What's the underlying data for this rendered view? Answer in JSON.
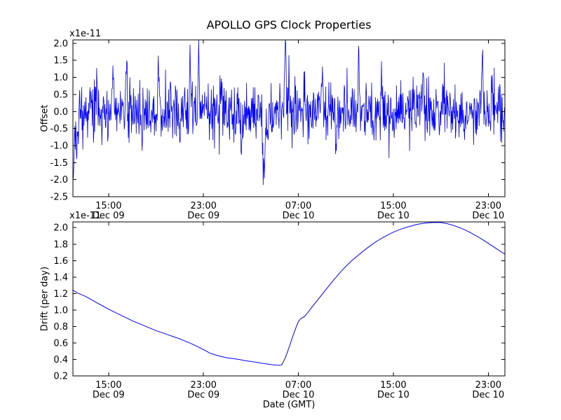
{
  "figure": {
    "background": "#ffffff",
    "line_color": "#0000ff",
    "axis_color": "#000000",
    "title": "APOLLO GPS Clock Properties",
    "xlabel": "Date (GMT)"
  },
  "chart_data": [
    {
      "type": "line",
      "name": "gps-clock-offset",
      "title": "APOLLO GPS Clock Properties",
      "ylabel": "Offset",
      "scale_label": "x1e-11",
      "y_unit": "1e-11",
      "xlim_hours": [
        12.0,
        48.4
      ],
      "ylim": [
        -2.5,
        2.1
      ],
      "yticks": [
        {
          "v": 2.0,
          "label": "2.0"
        },
        {
          "v": 1.5,
          "label": "1.5"
        },
        {
          "v": 1.0,
          "label": "1.0"
        },
        {
          "v": 0.5,
          "label": "0.5"
        },
        {
          "v": 0.0,
          "label": "0.0"
        },
        {
          "v": -0.5,
          "label": "-0.5"
        },
        {
          "v": -1.0,
          "label": "-1.0"
        },
        {
          "v": -1.5,
          "label": "-1.5"
        },
        {
          "v": -2.0,
          "label": "-2.0"
        },
        {
          "v": -2.5,
          "label": "-2.5"
        }
      ],
      "xticks": [
        {
          "hour": 15,
          "time": "15:00",
          "date": "Dec 09"
        },
        {
          "hour": 23,
          "time": "23:00",
          "date": "Dec 09"
        },
        {
          "hour": 31,
          "time": "07:00",
          "date": "Dec 10"
        },
        {
          "hour": 39,
          "time": "15:00",
          "date": "Dec 10"
        },
        {
          "hour": 47,
          "time": "23:00",
          "date": "Dec 10"
        }
      ],
      "noise": {
        "seed": 20,
        "dt_minutes": 2,
        "mean": 0.0,
        "std": 0.4,
        "clip": [
          -2.45,
          2.1
        ],
        "pulses": [
          [
            12.05,
            -1.9,
            0.12
          ],
          [
            12.35,
            -1.1,
            0.1
          ],
          [
            14.0,
            0.9,
            0.1
          ],
          [
            15.4,
            1.0,
            0.08
          ],
          [
            16.5,
            1.5,
            0.07
          ],
          [
            17.8,
            -0.9,
            0.08
          ],
          [
            19.2,
            1.0,
            0.08
          ],
          [
            21.0,
            -1.1,
            0.08
          ],
          [
            21.9,
            1.5,
            0.07
          ],
          [
            22.6,
            1.55,
            0.07
          ],
          [
            24.5,
            0.9,
            0.08
          ],
          [
            26.2,
            -1.0,
            0.1
          ],
          [
            28.1,
            -1.9,
            0.12
          ],
          [
            28.4,
            -1.1,
            0.08
          ],
          [
            29.9,
            2.2,
            0.09
          ],
          [
            30.2,
            1.0,
            0.06
          ],
          [
            31.5,
            1.1,
            0.08
          ],
          [
            33.0,
            0.9,
            0.08
          ],
          [
            34.2,
            -1.0,
            0.08
          ],
          [
            36.1,
            1.3,
            0.07
          ],
          [
            38.0,
            0.9,
            0.08
          ],
          [
            41.5,
            1.2,
            0.08
          ],
          [
            43.2,
            0.8,
            0.08
          ],
          [
            45.0,
            -0.9,
            0.08
          ],
          [
            46.5,
            1.5,
            0.08
          ],
          [
            47.3,
            0.9,
            0.06
          ]
        ]
      }
    },
    {
      "type": "line",
      "name": "gps-clock-drift",
      "ylabel": "Drift (per day)",
      "xlabel": "Date (GMT)",
      "scale_label": "x1e-11",
      "y_unit": "1e-11",
      "xlim_hours": [
        12.0,
        48.4
      ],
      "ylim": [
        0.2,
        2.07
      ],
      "yticks": [
        {
          "v": 2.0,
          "label": "2.0"
        },
        {
          "v": 1.8,
          "label": "1.8"
        },
        {
          "v": 1.6,
          "label": "1.6"
        },
        {
          "v": 1.4,
          "label": "1.4"
        },
        {
          "v": 1.2,
          "label": "1.2"
        },
        {
          "v": 1.0,
          "label": "1.0"
        },
        {
          "v": 0.8,
          "label": "0.8"
        },
        {
          "v": 0.6,
          "label": "0.6"
        },
        {
          "v": 0.4,
          "label": "0.4"
        },
        {
          "v": 0.2,
          "label": "0.2"
        }
      ],
      "xticks": [
        {
          "hour": 15,
          "time": "15:00",
          "date": "Dec 09"
        },
        {
          "hour": 23,
          "time": "23:00",
          "date": "Dec 09"
        },
        {
          "hour": 31,
          "time": "07:00",
          "date": "Dec 10"
        },
        {
          "hour": 39,
          "time": "15:00",
          "date": "Dec 10"
        },
        {
          "hour": 47,
          "time": "23:00",
          "date": "Dec 10"
        }
      ],
      "points": [
        [
          12.0,
          1.24
        ],
        [
          12.5,
          1.2
        ],
        [
          13.0,
          1.17
        ],
        [
          13.5,
          1.13
        ],
        [
          14.0,
          1.09
        ],
        [
          14.5,
          1.05
        ],
        [
          15.0,
          1.01
        ],
        [
          15.5,
          0.975
        ],
        [
          16.0,
          0.94
        ],
        [
          16.5,
          0.905
        ],
        [
          17.0,
          0.87
        ],
        [
          17.5,
          0.84
        ],
        [
          18.0,
          0.81
        ],
        [
          18.5,
          0.78
        ],
        [
          19.0,
          0.75
        ],
        [
          19.5,
          0.725
        ],
        [
          20.0,
          0.7
        ],
        [
          20.5,
          0.675
        ],
        [
          21.0,
          0.65
        ],
        [
          21.5,
          0.62
        ],
        [
          22.0,
          0.59
        ],
        [
          22.5,
          0.555
        ],
        [
          23.0,
          0.52
        ],
        [
          23.5,
          0.48
        ],
        [
          24.0,
          0.455
        ],
        [
          24.5,
          0.435
        ],
        [
          25.0,
          0.42
        ],
        [
          25.5,
          0.41
        ],
        [
          26.0,
          0.4
        ],
        [
          26.5,
          0.385
        ],
        [
          27.0,
          0.375
        ],
        [
          27.5,
          0.365
        ],
        [
          28.0,
          0.352
        ],
        [
          28.5,
          0.342
        ],
        [
          28.8,
          0.335
        ],
        [
          29.1,
          0.331
        ],
        [
          29.4,
          0.33
        ],
        [
          29.6,
          0.335
        ],
        [
          29.9,
          0.42
        ],
        [
          30.2,
          0.54
        ],
        [
          30.5,
          0.67
        ],
        [
          30.8,
          0.79
        ],
        [
          31.0,
          0.86
        ],
        [
          31.2,
          0.895
        ],
        [
          31.5,
          0.92
        ],
        [
          31.8,
          0.97
        ],
        [
          32.0,
          1.01
        ],
        [
          32.5,
          1.1
        ],
        [
          33.0,
          1.19
        ],
        [
          33.5,
          1.28
        ],
        [
          34.0,
          1.37
        ],
        [
          34.5,
          1.455
        ],
        [
          35.0,
          1.53
        ],
        [
          35.5,
          1.6
        ],
        [
          36.0,
          1.66
        ],
        [
          36.5,
          1.72
        ],
        [
          37.0,
          1.775
        ],
        [
          37.5,
          1.825
        ],
        [
          38.0,
          1.87
        ],
        [
          38.5,
          1.91
        ],
        [
          39.0,
          1.945
        ],
        [
          39.5,
          1.975
        ],
        [
          40.0,
          2.0
        ],
        [
          40.5,
          2.02
        ],
        [
          41.0,
          2.04
        ],
        [
          41.5,
          2.052
        ],
        [
          42.0,
          2.06
        ],
        [
          42.5,
          2.064
        ],
        [
          43.0,
          2.062
        ],
        [
          43.5,
          2.05
        ],
        [
          44.0,
          2.03
        ],
        [
          44.5,
          2.005
        ],
        [
          45.0,
          1.975
        ],
        [
          45.5,
          1.94
        ],
        [
          46.0,
          1.9
        ],
        [
          46.5,
          1.857
        ],
        [
          47.0,
          1.81
        ],
        [
          47.5,
          1.762
        ],
        [
          48.0,
          1.715
        ],
        [
          48.4,
          1.68
        ]
      ]
    }
  ]
}
